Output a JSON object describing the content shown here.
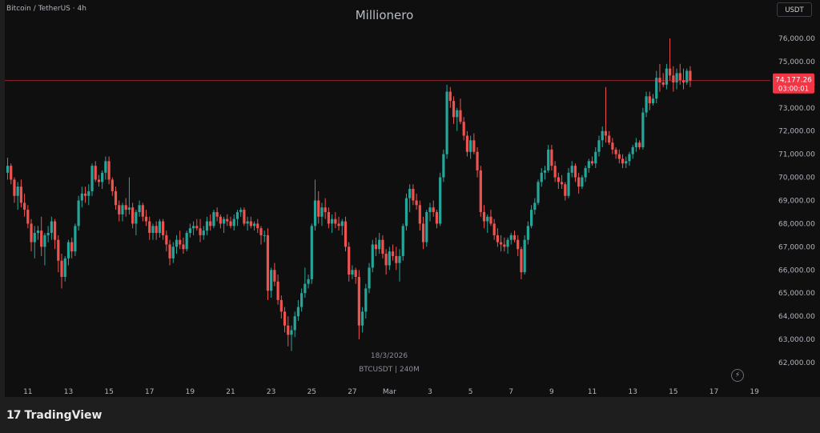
{
  "header": {
    "symbol_label": "Bitcoin / TetherUS · 4h",
    "watermark_title": "Millionero",
    "currency_button": "USDT"
  },
  "watermark": {
    "date": "18/3/2026",
    "pair_interval": "BTCUSDT | 240M"
  },
  "branding": {
    "logo_mark": "17",
    "logo_text": "TradingView"
  },
  "price_line": {
    "price_label": "74,177.26",
    "countdown": "03:00:01",
    "color": "#f23645"
  },
  "colors": {
    "up": "#26a69a",
    "down": "#ef5350",
    "background": "#0f0f0f",
    "axis_text": "#b2b5be"
  },
  "chart_data": {
    "type": "candlestick",
    "yaxis": {
      "ticks": [
        "76,000.00",
        "75,000.00",
        "74,000.00",
        "73,000.00",
        "72,000.00",
        "71,000.00",
        "70,000.00",
        "69,000.00",
        "68,000.00",
        "67,000.00",
        "66,000.00",
        "65,000.00",
        "64,000.00",
        "63,000.00",
        "62,000.00"
      ],
      "ylim": [
        61600,
        76600
      ]
    },
    "xaxis": {
      "ticks": [
        {
          "label": "11",
          "bar": 6
        },
        {
          "label": "13",
          "bar": 18
        },
        {
          "label": "15",
          "bar": 30
        },
        {
          "label": "17",
          "bar": 42
        },
        {
          "label": "19",
          "bar": 54
        },
        {
          "label": "21",
          "bar": 66
        },
        {
          "label": "23",
          "bar": 78
        },
        {
          "label": "25",
          "bar": 90
        },
        {
          "label": "27",
          "bar": 102
        },
        {
          "label": "Mar",
          "bar": 113
        },
        {
          "label": "3",
          "bar": 125
        },
        {
          "label": "5",
          "bar": 137
        },
        {
          "label": "7",
          "bar": 149
        },
        {
          "label": "9",
          "bar": 161
        },
        {
          "label": "11",
          "bar": 173
        },
        {
          "label": "13",
          "bar": 185
        },
        {
          "label": "15",
          "bar": 197
        },
        {
          "label": "17",
          "bar": 209
        },
        {
          "label": "19",
          "bar": 221
        }
      ]
    },
    "last_price": 74177.26,
    "candles": [
      [
        70200,
        70850,
        69900,
        70500
      ],
      [
        70500,
        70600,
        69700,
        69900
      ],
      [
        69900,
        70000,
        68900,
        69200
      ],
      [
        69200,
        69800,
        68600,
        69600
      ],
      [
        69600,
        69900,
        68700,
        68900
      ],
      [
        68900,
        69300,
        68300,
        68600
      ],
      [
        68600,
        68800,
        67800,
        68000
      ],
      [
        68000,
        68200,
        66800,
        67200
      ],
      [
        67200,
        67900,
        66500,
        67600
      ],
      [
        67600,
        67900,
        67300,
        67700
      ],
      [
        67700,
        68300,
        66600,
        67000
      ],
      [
        67000,
        67600,
        66200,
        67500
      ],
      [
        67500,
        67900,
        67200,
        67600
      ],
      [
        67600,
        68300,
        67300,
        68100
      ],
      [
        68100,
        68200,
        66900,
        67300
      ],
      [
        67300,
        67500,
        65900,
        66400
      ],
      [
        66400,
        66700,
        65200,
        65700
      ],
      [
        65700,
        66600,
        65500,
        66500
      ],
      [
        66500,
        67300,
        66200,
        67200
      ],
      [
        67200,
        67400,
        66500,
        66800
      ],
      [
        66800,
        68000,
        66600,
        67900
      ],
      [
        67900,
        69200,
        67700,
        69000
      ],
      [
        69000,
        69600,
        68700,
        69300
      ],
      [
        69300,
        69600,
        68900,
        69200
      ],
      [
        69200,
        69700,
        68800,
        69400
      ],
      [
        69400,
        70600,
        69200,
        70500
      ],
      [
        70500,
        70700,
        69800,
        69900
      ],
      [
        69900,
        70100,
        69600,
        69800
      ],
      [
        69800,
        70300,
        69500,
        70200
      ],
      [
        70200,
        70900,
        69900,
        70700
      ],
      [
        70700,
        70900,
        69700,
        69900
      ],
      [
        69900,
        70000,
        69200,
        69400
      ],
      [
        69400,
        69600,
        68600,
        68800
      ],
      [
        68800,
        69000,
        68100,
        68400
      ],
      [
        68400,
        68900,
        68100,
        68800
      ],
      [
        68800,
        69100,
        68300,
        68600
      ],
      [
        68600,
        70000,
        68400,
        68700
      ],
      [
        68700,
        68900,
        67800,
        68000
      ],
      [
        68000,
        68600,
        67500,
        68500
      ],
      [
        68500,
        69000,
        68300,
        68800
      ],
      [
        68800,
        68900,
        68100,
        68300
      ],
      [
        68300,
        68600,
        67900,
        68100
      ],
      [
        68100,
        68300,
        67300,
        67600
      ],
      [
        67600,
        68000,
        67300,
        67900
      ],
      [
        67900,
        68100,
        67300,
        67600
      ],
      [
        67600,
        68200,
        67400,
        68100
      ],
      [
        68100,
        68200,
        67300,
        67500
      ],
      [
        67500,
        67700,
        66800,
        67100
      ],
      [
        67100,
        67300,
        66200,
        66500
      ],
      [
        66500,
        67200,
        66300,
        67000
      ],
      [
        67000,
        67500,
        66700,
        67300
      ],
      [
        67300,
        67700,
        66900,
        67100
      ],
      [
        67100,
        67400,
        66700,
        66900
      ],
      [
        66900,
        67700,
        66800,
        67600
      ],
      [
        67600,
        68000,
        67400,
        67800
      ],
      [
        67800,
        68100,
        67500,
        67900
      ],
      [
        67900,
        68200,
        67700,
        67800
      ],
      [
        67800,
        68200,
        67200,
        67500
      ],
      [
        67500,
        67900,
        67300,
        67700
      ],
      [
        67700,
        68300,
        67500,
        68100
      ],
      [
        68100,
        68400,
        67700,
        67900
      ],
      [
        67900,
        68600,
        67800,
        68500
      ],
      [
        68500,
        68700,
        68100,
        68300
      ],
      [
        68300,
        68400,
        67800,
        68000
      ],
      [
        68000,
        68300,
        67600,
        68200
      ],
      [
        68200,
        68400,
        67900,
        68100
      ],
      [
        68100,
        68300,
        67800,
        67900
      ],
      [
        67900,
        68400,
        67700,
        68200
      ],
      [
        68200,
        68600,
        67900,
        68500
      ],
      [
        68500,
        68700,
        68300,
        68600
      ],
      [
        68600,
        68700,
        67900,
        68000
      ],
      [
        68000,
        68300,
        67700,
        68100
      ],
      [
        68100,
        68300,
        67800,
        67900
      ],
      [
        67900,
        68100,
        67700,
        68000
      ],
      [
        68000,
        68200,
        67600,
        67800
      ],
      [
        67800,
        67900,
        67100,
        67500
      ],
      [
        67500,
        67700,
        67200,
        67500
      ],
      [
        67500,
        67800,
        64700,
        65100
      ],
      [
        65100,
        66100,
        64800,
        66000
      ],
      [
        66000,
        66300,
        65300,
        65500
      ],
      [
        65500,
        65800,
        64500,
        64700
      ],
      [
        64700,
        64900,
        63900,
        64200
      ],
      [
        64200,
        64400,
        63300,
        63600
      ],
      [
        63600,
        64000,
        62700,
        63200
      ],
      [
        63200,
        63600,
        62500,
        63400
      ],
      [
        63400,
        64200,
        63100,
        64000
      ],
      [
        64000,
        64700,
        63800,
        64400
      ],
      [
        64400,
        65200,
        64200,
        65000
      ],
      [
        65000,
        66100,
        64800,
        65400
      ],
      [
        65400,
        65800,
        65200,
        65600
      ],
      [
        65600,
        68000,
        65400,
        67900
      ],
      [
        67900,
        69900,
        67700,
        69000
      ],
      [
        69000,
        69400,
        68000,
        68300
      ],
      [
        68300,
        68900,
        67900,
        68700
      ],
      [
        68700,
        69100,
        68200,
        68500
      ],
      [
        68500,
        68700,
        67800,
        68000
      ],
      [
        68000,
        68400,
        67600,
        68200
      ],
      [
        68200,
        68500,
        67800,
        68000
      ],
      [
        68000,
        68300,
        67700,
        67900
      ],
      [
        67900,
        68200,
        67500,
        68100
      ],
      [
        68100,
        68300,
        66800,
        67000
      ],
      [
        67000,
        67200,
        65500,
        65800
      ],
      [
        65800,
        66200,
        65600,
        66000
      ],
      [
        66000,
        66100,
        65400,
        65700
      ],
      [
        65700,
        66000,
        63000,
        63600
      ],
      [
        63600,
        64400,
        63300,
        64200
      ],
      [
        64200,
        65400,
        63900,
        65200
      ],
      [
        65200,
        66300,
        65000,
        66100
      ],
      [
        66100,
        67300,
        65900,
        67100
      ],
      [
        67100,
        67400,
        66600,
        66900
      ],
      [
        66900,
        67600,
        66700,
        67300
      ],
      [
        67300,
        67500,
        66500,
        66700
      ],
      [
        66700,
        66900,
        65800,
        66200
      ],
      [
        66200,
        67000,
        66000,
        66800
      ],
      [
        66800,
        67100,
        66400,
        66600
      ],
      [
        66600,
        67000,
        66000,
        66300
      ],
      [
        66300,
        66900,
        65500,
        66600
      ],
      [
        66600,
        68000,
        66400,
        67900
      ],
      [
        67900,
        69300,
        67700,
        69100
      ],
      [
        69100,
        69700,
        68500,
        69500
      ],
      [
        69500,
        69700,
        68800,
        69000
      ],
      [
        69000,
        69300,
        68600,
        68800
      ],
      [
        68800,
        69000,
        67700,
        68000
      ],
      [
        68000,
        68300,
        66900,
        67200
      ],
      [
        67200,
        68600,
        67000,
        68500
      ],
      [
        68500,
        68900,
        68100,
        68700
      ],
      [
        68700,
        69000,
        68300,
        68500
      ],
      [
        68500,
        68600,
        67800,
        68000
      ],
      [
        68000,
        70200,
        67900,
        70000
      ],
      [
        70000,
        71200,
        69800,
        71000
      ],
      [
        71000,
        74000,
        70800,
        73700
      ],
      [
        73700,
        73900,
        73000,
        73300
      ],
      [
        73300,
        73500,
        72300,
        72600
      ],
      [
        72600,
        73000,
        72000,
        72900
      ],
      [
        72900,
        73400,
        72300,
        72400
      ],
      [
        72400,
        72600,
        71600,
        71800
      ],
      [
        71800,
        72000,
        70900,
        71100
      ],
      [
        71100,
        71800,
        70800,
        71600
      ],
      [
        71600,
        71900,
        71000,
        71100
      ],
      [
        71100,
        71300,
        70000,
        70300
      ],
      [
        70300,
        70500,
        68300,
        68500
      ],
      [
        68500,
        68800,
        67800,
        68100
      ],
      [
        68100,
        68400,
        67600,
        68300
      ],
      [
        68300,
        68600,
        67900,
        68000
      ],
      [
        68000,
        68200,
        67300,
        67500
      ],
      [
        67500,
        67800,
        67000,
        67200
      ],
      [
        67200,
        67500,
        66800,
        67100
      ],
      [
        67100,
        67400,
        66800,
        67000
      ],
      [
        67000,
        67400,
        66700,
        67300
      ],
      [
        67300,
        67600,
        67100,
        67500
      ],
      [
        67500,
        67700,
        67200,
        67300
      ],
      [
        67300,
        67500,
        66600,
        66900
      ],
      [
        66900,
        67000,
        65600,
        65900
      ],
      [
        65900,
        67500,
        65800,
        67300
      ],
      [
        67300,
        68100,
        67100,
        67900
      ],
      [
        67900,
        68800,
        67800,
        68600
      ],
      [
        68600,
        69100,
        68400,
        68900
      ],
      [
        68900,
        69900,
        68800,
        69800
      ],
      [
        69800,
        70400,
        69600,
        70200
      ],
      [
        70200,
        70500,
        69900,
        70300
      ],
      [
        70300,
        71400,
        70200,
        71200
      ],
      [
        71200,
        71400,
        70300,
        70500
      ],
      [
        70500,
        70700,
        69800,
        70000
      ],
      [
        70000,
        70200,
        69500,
        69800
      ],
      [
        69800,
        70100,
        69500,
        69700
      ],
      [
        69700,
        69800,
        69000,
        69200
      ],
      [
        69200,
        70400,
        69100,
        70200
      ],
      [
        70200,
        70700,
        70000,
        70500
      ],
      [
        70500,
        70600,
        69800,
        70000
      ],
      [
        70000,
        70200,
        69300,
        69600
      ],
      [
        69600,
        70100,
        69500,
        70000
      ],
      [
        70000,
        70500,
        69800,
        70400
      ],
      [
        70400,
        70800,
        70200,
        70700
      ],
      [
        70700,
        70900,
        70500,
        70600
      ],
      [
        70600,
        71300,
        70400,
        71100
      ],
      [
        71100,
        71800,
        70900,
        71600
      ],
      [
        71600,
        72200,
        71300,
        72000
      ],
      [
        72000,
        73900,
        71500,
        71800
      ],
      [
        71800,
        72000,
        71400,
        71500
      ],
      [
        71500,
        71700,
        71000,
        71200
      ],
      [
        71200,
        71300,
        70800,
        71000
      ],
      [
        71000,
        71200,
        70600,
        70800
      ],
      [
        70800,
        71000,
        70400,
        70600
      ],
      [
        70600,
        70900,
        70400,
        70700
      ],
      [
        70700,
        71100,
        70500,
        71000
      ],
      [
        71000,
        71400,
        70800,
        71300
      ],
      [
        71300,
        71700,
        71100,
        71500
      ],
      [
        71500,
        71600,
        71200,
        71300
      ],
      [
        71300,
        73000,
        71200,
        72800
      ],
      [
        72800,
        73700,
        72600,
        73500
      ],
      [
        73500,
        73700,
        72900,
        73200
      ],
      [
        73200,
        73600,
        73100,
        73400
      ],
      [
        73400,
        74600,
        73200,
        74300
      ],
      [
        74300,
        74900,
        73700,
        74100
      ],
      [
        74100,
        74500,
        73900,
        74000
      ],
      [
        74000,
        74900,
        73800,
        74700
      ],
      [
        74700,
        76000,
        74200,
        74400
      ],
      [
        74400,
        74800,
        73700,
        74100
      ],
      [
        74100,
        74700,
        73800,
        74500
      ],
      [
        74500,
        74900,
        74000,
        74200
      ],
      [
        74200,
        74700,
        73800,
        74100
      ],
      [
        74100,
        74700,
        74000,
        74600
      ],
      [
        74600,
        74800,
        73900,
        74177
      ]
    ]
  }
}
